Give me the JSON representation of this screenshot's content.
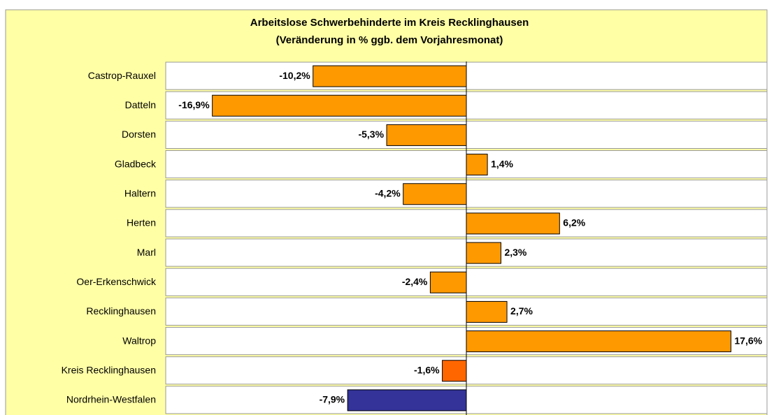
{
  "chart_data": {
    "type": "barh",
    "title": "Arbeitslose Schwerbehinderte im Kreis Recklinghausen",
    "subtitle": "(Veränderung in % ggb. dem Vorjahresmonat)",
    "categories": [
      "Castrop-Rauxel",
      "Datteln",
      "Dorsten",
      "Gladbeck",
      "Haltern",
      "Herten",
      "Marl",
      "Oer-Erkenschwick",
      "Recklinghausen",
      "Waltrop",
      "Kreis Recklinghausen",
      "Nordrhein-Westfalen"
    ],
    "values": [
      -10.2,
      -16.9,
      -5.3,
      1.4,
      -4.2,
      6.2,
      2.3,
      -2.4,
      2.7,
      17.6,
      -1.6,
      -7.9
    ],
    "value_labels": [
      "-10,2%",
      "-16,9%",
      "-5,3%",
      "1,4%",
      "-4,2%",
      "6,2%",
      "2,3%",
      "-2,4%",
      "2,7%",
      "17,6%",
      "-1,6%",
      "-7,9%"
    ],
    "colors": [
      "#ff9900",
      "#ff9900",
      "#ff9900",
      "#ff9900",
      "#ff9900",
      "#ff9900",
      "#ff9900",
      "#ff9900",
      "#ff9900",
      "#ff9900",
      "#ff6600",
      "#333399"
    ],
    "xlim": [
      -20,
      20
    ]
  }
}
